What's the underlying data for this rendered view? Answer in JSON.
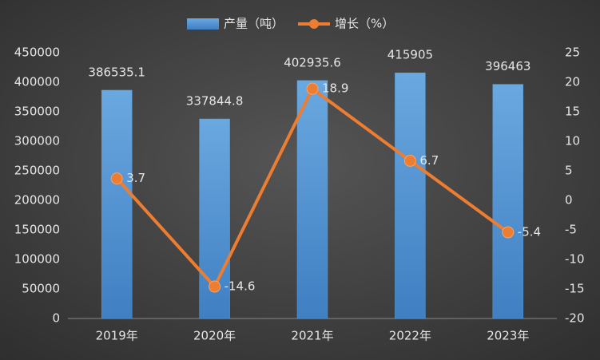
{
  "chart_data": {
    "type": "bar",
    "categories": [
      "2019年",
      "2020年",
      "2021年",
      "2022年",
      "2023年"
    ],
    "series": [
      {
        "name": "产量（吨）",
        "type": "bar",
        "color": "#5b9bd5",
        "values": [
          386535.1,
          337844.8,
          402935.6,
          415905,
          396463
        ]
      },
      {
        "name": "增长（%）",
        "type": "line",
        "axis": "y2",
        "color": "#ed7d31",
        "values": [
          3.7,
          -14.6,
          18.9,
          6.7,
          -5.4
        ]
      }
    ],
    "ylim": [
      0,
      450000
    ],
    "yticks": [
      0,
      50000,
      100000,
      150000,
      200000,
      250000,
      300000,
      350000,
      400000,
      450000
    ],
    "y2lim": [
      -20,
      25
    ],
    "y2ticks": [
      -20,
      -15,
      -10,
      -5,
      0,
      5,
      10,
      15,
      20,
      25
    ],
    "grid": false,
    "legend": "top"
  }
}
